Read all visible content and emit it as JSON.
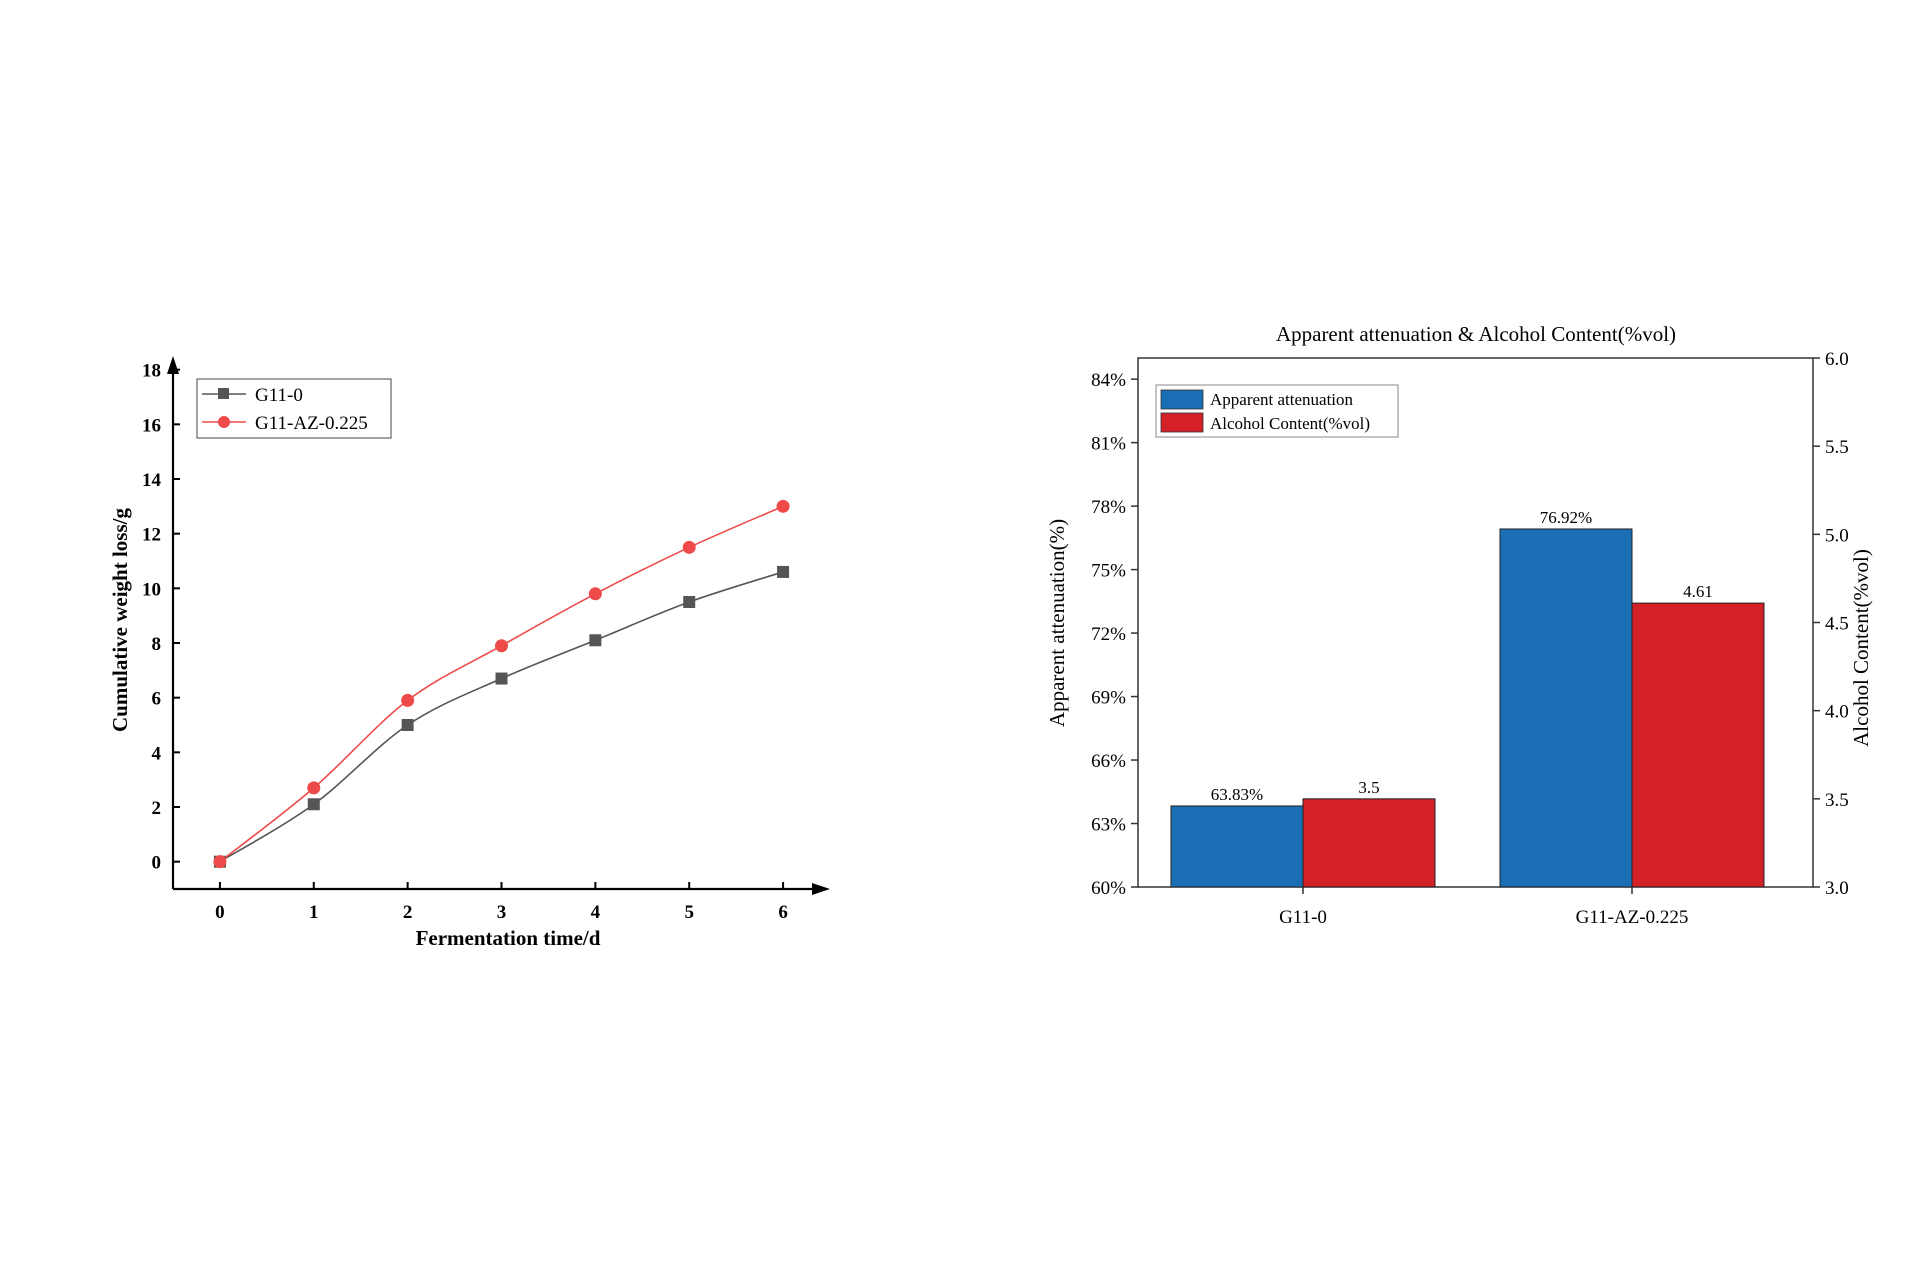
{
  "colors": {
    "g11_0_line": "#555555",
    "g11_az_line": "#ef4a4a",
    "bar_attenuation": "#1a6fb4",
    "bar_alcohol": "#d42027"
  },
  "chart_data": [
    {
      "type": "line",
      "title": "",
      "xlabel": "Fermentation time/d",
      "ylabel": "Cumulative weight loss/g",
      "x": [
        0,
        1,
        2,
        3,
        4,
        5,
        6
      ],
      "x_ticks": [
        "0",
        "1",
        "2",
        "3",
        "4",
        "5",
        "6"
      ],
      "y_ticks": [
        "0",
        "2",
        "4",
        "6",
        "8",
        "10",
        "12",
        "14",
        "16",
        "18"
      ],
      "xlim": [
        -0.5,
        6.5
      ],
      "ylim": [
        -1,
        18.5
      ],
      "legend_position": "top-left",
      "series": [
        {
          "name": "G11-0",
          "marker": "square",
          "values": [
            0,
            2.1,
            5.0,
            6.7,
            8.1,
            9.5,
            10.6
          ]
        },
        {
          "name": "G11-AZ-0.225",
          "marker": "circle",
          "values": [
            0,
            2.7,
            5.9,
            7.9,
            9.8,
            11.5,
            13.0
          ]
        }
      ]
    },
    {
      "type": "bar",
      "title": "Apparent attenuation & Alcohol Content(%vol)",
      "xlabel": "",
      "ylabel": "Apparent attenuation(%)",
      "y2label": "Alcohol Content(%vol)",
      "categories": [
        "G11-0",
        "G11-AZ-0.225"
      ],
      "ylim": [
        60,
        85
      ],
      "y2lim": [
        3.0,
        6.0
      ],
      "y_ticks": [
        "60%",
        "63%",
        "66%",
        "69%",
        "72%",
        "75%",
        "78%",
        "81%",
        "84%"
      ],
      "y2_ticks": [
        "3.0",
        "3.5",
        "4.0",
        "4.5",
        "5.0",
        "5.5",
        "6.0"
      ],
      "legend_position": "top-left",
      "series": [
        {
          "name": "Apparent attenuation",
          "axis": "left",
          "values": [
            63.83,
            76.92
          ],
          "labels": [
            "63.83%",
            "76.92%"
          ]
        },
        {
          "name": "Alcohol Content(%vol)",
          "axis": "right",
          "values": [
            3.5,
            4.61
          ],
          "labels": [
            "3.5",
            "4.61"
          ]
        }
      ]
    }
  ]
}
